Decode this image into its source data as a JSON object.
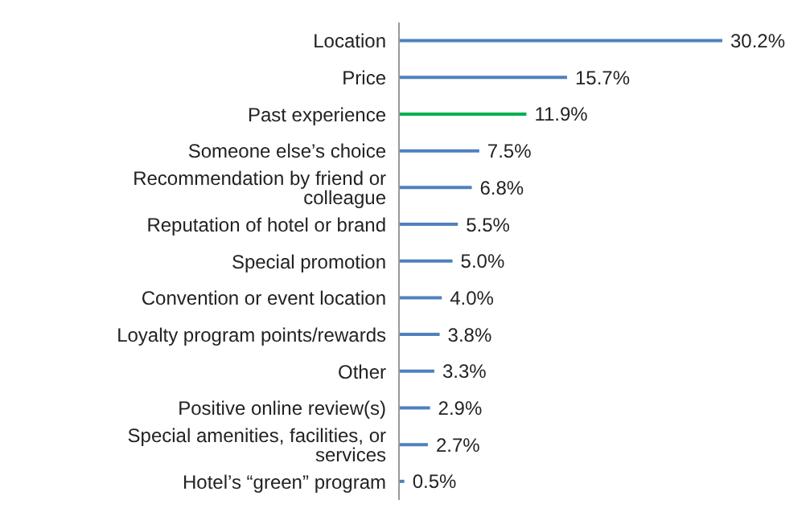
{
  "chart_data": {
    "type": "bar",
    "orientation": "horizontal",
    "categories": [
      "Location",
      "Price",
      "Past experience",
      "Someone else’s choice",
      "Recommendation by friend or colleague",
      "Reputation of hotel or brand",
      "Special promotion",
      "Convention or event location",
      "Loyalty program points/rewards",
      "Other",
      "Positive online review(s)",
      "Special amenities, facilities, or services",
      "Hotel’s “green” program"
    ],
    "values": [
      30.2,
      15.7,
      11.9,
      7.5,
      6.8,
      5.5,
      5.0,
      4.0,
      3.8,
      3.3,
      2.9,
      2.7,
      0.5
    ],
    "colors": [
      "#4f81bd",
      "#4f81bd",
      "#00b050",
      "#4f81bd",
      "#4f81bd",
      "#4f81bd",
      "#4f81bd",
      "#4f81bd",
      "#4f81bd",
      "#4f81bd",
      "#4f81bd",
      "#4f81bd",
      "#4f81bd"
    ],
    "value_labels": [
      "30.2%",
      "15.7%",
      "11.9%",
      "7.5%",
      "6.8%",
      "5.5%",
      "5.0%",
      "4.0%",
      "3.8%",
      "3.3%",
      "2.9%",
      "2.7%",
      "0.5%"
    ],
    "grid": false,
    "legend": false
  }
}
